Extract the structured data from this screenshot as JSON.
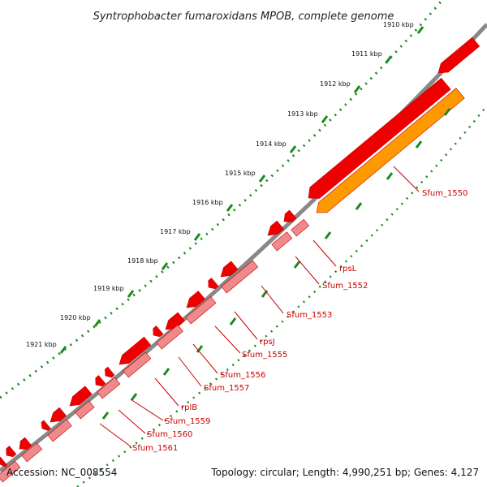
{
  "title": "Syntrophobacter fumaroxidans MPOB, complete genome",
  "footer": {
    "accession": "Accession: NC_008554",
    "summary": "Topology: circular; Length: 4,990,251 bp; Genes: 4,127"
  },
  "ticks": [
    "1910 kbp",
    "1911 kbp",
    "1912 kbp",
    "1913 kbp",
    "1914 kbp",
    "1915 kbp",
    "1916 kbp",
    "1917 kbp",
    "1918 kbp",
    "1919 kbp",
    "1920 kbp",
    "1921 kbp"
  ],
  "genes": [
    "Sfum_1550",
    "rpsL",
    "Sfum_1552",
    "Sfum_1553",
    "rpsJ",
    "Sfum_1555",
    "Sfum_1556",
    "Sfum_1557",
    "rplB",
    "Sfum_1559",
    "Sfum_1560",
    "Sfum_1561"
  ],
  "colors": {
    "backbone": "#888888",
    "forward_cds": "#ee0000",
    "reverse_cds": "#f08a8a",
    "reverse_cds_highlight": "#ff9900",
    "gene_label": "#cc0000",
    "tick_mark": "#1a8a1a"
  }
}
